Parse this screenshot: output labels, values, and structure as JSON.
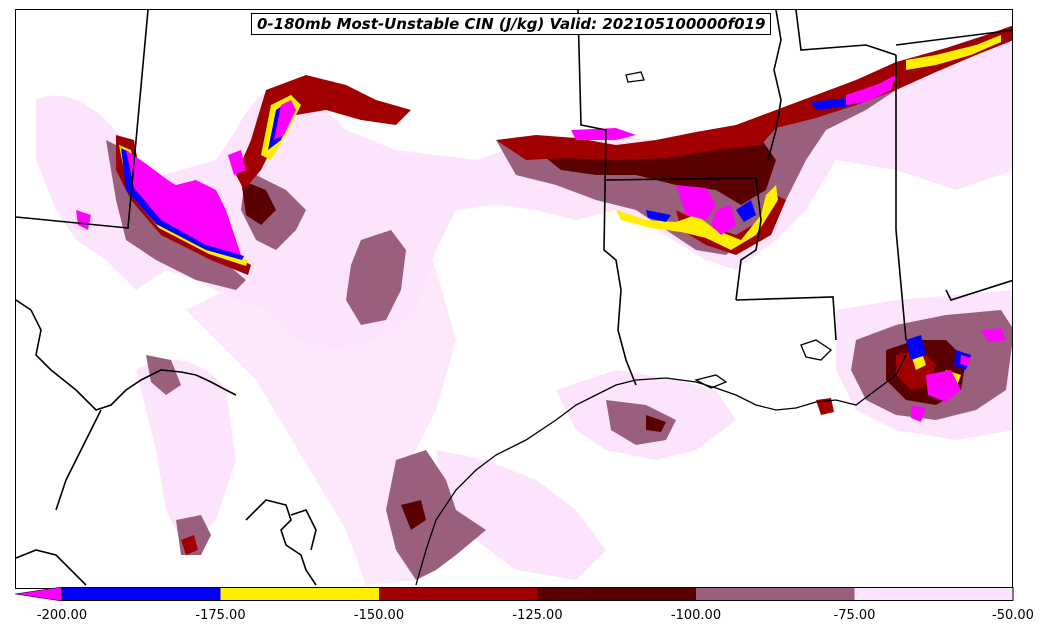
{
  "title": "0-180mb Most-Unstable CIN (J/kg) Valid: 202105100000f019",
  "colorbar": {
    "ticks": [
      "-200.00",
      "-175.00",
      "-150.00",
      "-125.00",
      "-100.00",
      "-75.00",
      "-50.00"
    ],
    "tick_values": [
      -200,
      -175,
      -150,
      -125,
      -100,
      -75,
      -50
    ],
    "bins": [
      {
        "from": -200,
        "to": -175,
        "color": "#0000ff"
      },
      {
        "from": -175,
        "to": -150,
        "color": "#ffee00"
      },
      {
        "from": -150,
        "to": -125,
        "color": "#a00000"
      },
      {
        "from": -125,
        "to": -100,
        "color": "#5a0000"
      },
      {
        "from": -100,
        "to": -75,
        "color": "#9a5f7c"
      },
      {
        "from": -75,
        "to": -50,
        "color": "#fce4fc"
      }
    ],
    "under_color": "#ff00ff"
  },
  "colors": {
    "magenta": "#ff00ff",
    "blue": "#0000ff",
    "yellow": "#ffee00",
    "red": "#a00000",
    "darkred": "#5a0000",
    "mauve": "#9a5f7c",
    "pink": "#fce4fc",
    "border": "#000000"
  }
}
